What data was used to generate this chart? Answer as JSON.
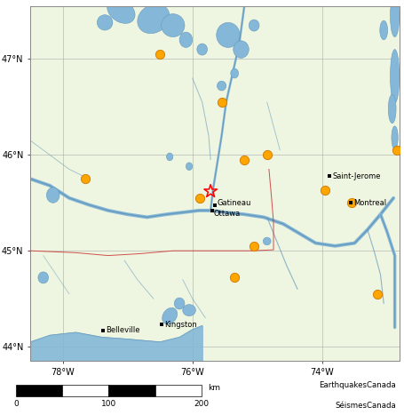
{
  "fig_width": 4.55,
  "fig_height": 4.67,
  "dpi": 100,
  "map_bg_color": "#eef5e0",
  "xlim": [
    -78.5,
    -72.8
  ],
  "ylim": [
    43.85,
    47.55
  ],
  "xticks": [
    -78,
    -76,
    -74
  ],
  "yticks": [
    44,
    45,
    46,
    47
  ],
  "xtick_labels": [
    "78°W",
    "76°W",
    "74°W"
  ],
  "ytick_labels": [
    "44°N",
    "45°N",
    "46°N",
    "47°N"
  ],
  "grid_color": "#aaaaaa",
  "grid_linewidth": 0.4,
  "earthquake_circles": [
    {
      "lon": -76.5,
      "lat": 47.05
    },
    {
      "lon": -75.55,
      "lat": 46.55
    },
    {
      "lon": -75.2,
      "lat": 45.95
    },
    {
      "lon": -77.65,
      "lat": 45.75
    },
    {
      "lon": -74.85,
      "lat": 46.0
    },
    {
      "lon": -72.85,
      "lat": 46.05
    },
    {
      "lon": -75.88,
      "lat": 45.55
    },
    {
      "lon": -75.05,
      "lat": 45.05
    },
    {
      "lon": -75.35,
      "lat": 44.72
    },
    {
      "lon": -73.95,
      "lat": 45.63
    },
    {
      "lon": -73.55,
      "lat": 45.5
    },
    {
      "lon": -73.15,
      "lat": 44.55
    }
  ],
  "circle_color": "#FFA500",
  "circle_edgecolor": "#cc7700",
  "circle_size": 55,
  "star_lon": -75.72,
  "star_lat": 45.62,
  "star_color": "red",
  "star_size": 120,
  "cities": [
    {
      "lon": -75.7,
      "lat": 45.42,
      "name": "Ottawa",
      "ox": 0.03,
      "oy": -0.03,
      "ha": "left"
    },
    {
      "lon": -75.65,
      "lat": 45.47,
      "name": "Gatineau",
      "ox": 0.03,
      "oy": 0.03,
      "ha": "left"
    },
    {
      "lon": -73.89,
      "lat": 45.78,
      "name": "Saint-Jerome",
      "ox": 0.05,
      "oy": 0.0,
      "ha": "left"
    },
    {
      "lon": -73.56,
      "lat": 45.5,
      "name": "Montreal",
      "ox": 0.05,
      "oy": 0.0,
      "ha": "left"
    },
    {
      "lon": -77.38,
      "lat": 44.17,
      "name": "Belleville",
      "ox": 0.05,
      "oy": 0.0,
      "ha": "left"
    },
    {
      "lon": -76.48,
      "lat": 44.23,
      "name": "Kingston",
      "ox": 0.05,
      "oy": 0.0,
      "ha": "left"
    }
  ],
  "city_dot_size": 4,
  "city_font_size": 6.0,
  "water_fill_color": "#85b8d8",
  "water_line_color": "#6699bb",
  "river_lw": 1.5,
  "border_color": "#cc3333",
  "font_size_ticks": 7
}
